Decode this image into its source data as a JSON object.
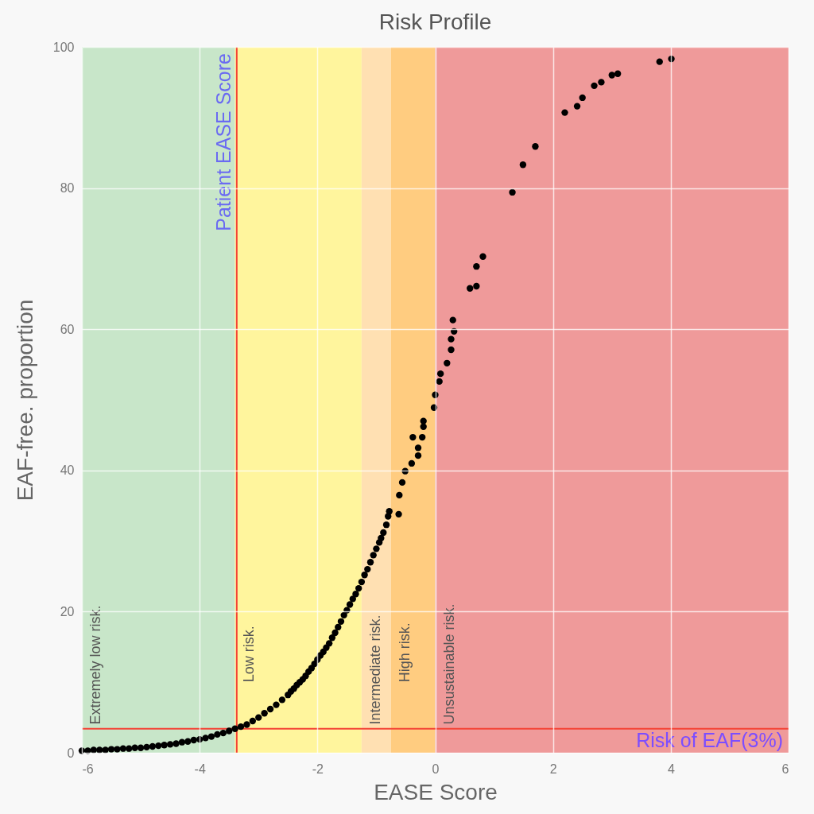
{
  "chart_data": {
    "type": "scatter",
    "title": "Risk Profile",
    "xlabel": "EASE Score",
    "ylabel": "EAF-free. proportion",
    "xlim": [
      -6,
      6
    ],
    "xticks": [
      -6,
      -4,
      -2,
      0,
      2,
      4,
      6
    ],
    "ylim": [
      0,
      100
    ],
    "yticks": [
      0,
      20,
      40,
      60,
      80,
      100
    ],
    "grid": true,
    "marker": "circle",
    "bands": [
      {
        "axis": "x",
        "from": -6,
        "to": -3.4,
        "label": "Extremely low risk.",
        "color": "#c8e6c9"
      },
      {
        "axis": "x",
        "from": -3.4,
        "to": -1.25,
        "label": "Low risk.",
        "color": "#fff59d"
      },
      {
        "axis": "x",
        "from": -1.25,
        "to": -0.75,
        "label": "Intermediate risk.",
        "color": "#ffe0b2"
      },
      {
        "axis": "x",
        "from": -0.75,
        "to": 0,
        "label": "High risk.",
        "color": "#ffcc80"
      },
      {
        "axis": "x",
        "from": 0,
        "to": 6,
        "label": "Unsustainable risk.",
        "color": "#ef9a9a"
      }
    ],
    "ref_lines": [
      {
        "axis": "x",
        "value": -3.37,
        "label": "Patient EASE Score",
        "color": "#f44336"
      },
      {
        "axis": "y",
        "value": 3.4,
        "label": "Risk of EAF(3%)",
        "color": "#f44336"
      }
    ],
    "series": [
      {
        "color": "#000000",
        "x": [
          -6.0,
          -5.9,
          -5.8,
          -5.7,
          -5.6,
          -5.5,
          -5.4,
          -5.3,
          -5.2,
          -5.1,
          -5.0,
          -4.9,
          -4.8,
          -4.7,
          -4.6,
          -4.5,
          -4.4,
          -4.3,
          -4.2,
          -4.1,
          -4.0,
          -3.9,
          -3.8,
          -3.7,
          -3.6,
          -3.5,
          -3.4,
          -3.3,
          -3.2,
          -3.1,
          -3.0,
          -2.9,
          -2.8,
          -2.7,
          -2.6,
          -2.5,
          -2.45,
          -2.4,
          -2.35,
          -2.3,
          -2.25,
          -2.2,
          -2.15,
          -2.1,
          -2.05,
          -2.0,
          -1.95,
          -1.9,
          -1.85,
          -1.8,
          -1.75,
          -1.7,
          -1.65,
          -1.6,
          -1.55,
          -1.5,
          -1.45,
          -1.4,
          -1.35,
          -1.3,
          -1.25,
          -1.2,
          -1.15,
          -1.1,
          -1.05,
          -1.0,
          -0.95,
          -0.92,
          -0.88,
          -0.83,
          -0.8,
          -0.78,
          -0.62,
          -0.61,
          -0.56,
          -0.51,
          -0.4,
          -0.29,
          -0.29,
          -0.38,
          -0.22,
          -0.2,
          -0.2,
          -0.02,
          0.0,
          0.07,
          0.09,
          0.2,
          0.27,
          0.27,
          0.32,
          0.3,
          0.59,
          0.7,
          0.7,
          0.81,
          1.31,
          1.49,
          1.7,
          2.2,
          2.41,
          2.5,
          2.7,
          2.82,
          3.0,
          3.1,
          3.81,
          4.01
        ],
        "values": [
          0.3,
          0.3,
          0.4,
          0.4,
          0.4,
          0.5,
          0.5,
          0.6,
          0.6,
          0.7,
          0.7,
          0.8,
          0.9,
          1.0,
          1.1,
          1.2,
          1.3,
          1.5,
          1.6,
          1.8,
          1.9,
          2.1,
          2.3,
          2.6,
          2.8,
          3.1,
          3.4,
          3.7,
          4.0,
          4.5,
          5.0,
          5.6,
          6.2,
          6.8,
          7.5,
          8.2,
          8.7,
          9.1,
          9.6,
          10.0,
          10.4,
          10.9,
          11.5,
          12.0,
          12.6,
          13.2,
          13.8,
          14.3,
          14.9,
          15.5,
          16.3,
          17.0,
          17.8,
          18.6,
          19.5,
          20.2,
          21.0,
          21.8,
          22.5,
          23.3,
          24.2,
          25.2,
          26.0,
          27.0,
          28.0,
          28.9,
          29.8,
          30.4,
          31.2,
          32.3,
          33.5,
          34.2,
          33.8,
          36.5,
          38.3,
          39.9,
          41.0,
          43.2,
          42.1,
          44.7,
          44.7,
          46.2,
          47.0,
          48.9,
          50.7,
          52.6,
          53.7,
          55.2,
          57.1,
          58.6,
          59.7,
          61.3,
          65.8,
          66.1,
          68.9,
          70.3,
          79.4,
          83.3,
          85.9,
          90.7,
          91.6,
          92.8,
          94.5,
          95.0,
          96.0,
          96.2,
          97.9,
          98.3
        ]
      }
    ]
  }
}
